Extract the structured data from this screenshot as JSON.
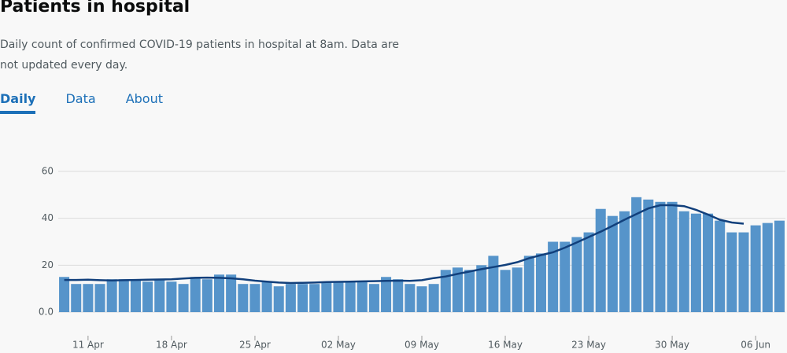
{
  "chart_data": {
    "type": "bar",
    "title": "Patients in hospital",
    "subtitle": "Daily count of confirmed COVID-19 patients in hospital at 8am. Data are not updated every day.",
    "categories": [
      null,
      null,
      "11 Apr",
      null,
      null,
      null,
      null,
      null,
      null,
      "18 Apr",
      null,
      null,
      null,
      null,
      null,
      null,
      "25 Apr",
      null,
      null,
      null,
      null,
      null,
      null,
      "02 May",
      null,
      null,
      null,
      null,
      null,
      null,
      "09 May",
      null,
      null,
      null,
      null,
      null,
      null,
      "16 May",
      null,
      null,
      null,
      null,
      null,
      null,
      "23 May",
      null,
      null,
      null,
      null,
      null,
      null,
      "30 May",
      null,
      null,
      null,
      null,
      null,
      null,
      "06 Jun",
      null,
      null
    ],
    "series": [
      {
        "type": "bar",
        "color": "#5694ca",
        "values": [
          15,
          12,
          12,
          12,
          14,
          14,
          14,
          13,
          14,
          13,
          12,
          15,
          14,
          16,
          16,
          12,
          12,
          13,
          11,
          12,
          12,
          12,
          13,
          13,
          13,
          13,
          12,
          15,
          14,
          12,
          11,
          12,
          18,
          19,
          18,
          20,
          24,
          18,
          19,
          24,
          25,
          30,
          30,
          32,
          34,
          44,
          41,
          43,
          49,
          48,
          47,
          47,
          43,
          42,
          42,
          39,
          34,
          34,
          37,
          38,
          39
        ]
      },
      {
        "type": "line",
        "color": "#12407c",
        "values": [
          13.7,
          13.7,
          13.8,
          13.6,
          13.5,
          13.6,
          13.7,
          13.8,
          13.9,
          14.0,
          14.3,
          14.6,
          14.7,
          14.6,
          14.4,
          14.0,
          13.4,
          13.0,
          12.6,
          12.4,
          12.5,
          12.6,
          12.8,
          12.9,
          13.0,
          13.1,
          13.2,
          13.3,
          13.4,
          13.3,
          13.6,
          14.5,
          15.2,
          16.3,
          17.3,
          18.3,
          19.2,
          20.1,
          21.3,
          23.0,
          24.3,
          25.5,
          27.5,
          29.7,
          32.0,
          34.3,
          36.8,
          39.4,
          41.8,
          44.2,
          45.6,
          45.6,
          45.2,
          43.6,
          41.6,
          39.4,
          38.2,
          37.7,
          null,
          null,
          null
        ]
      }
    ],
    "ylim": [
      0,
      60
    ],
    "yticks": [
      {
        "value": 0,
        "label": "0.0"
      },
      20,
      40,
      60
    ],
    "grid": true
  },
  "tabs": [
    "Daily",
    "Data",
    "About"
  ],
  "active_tab": 0
}
